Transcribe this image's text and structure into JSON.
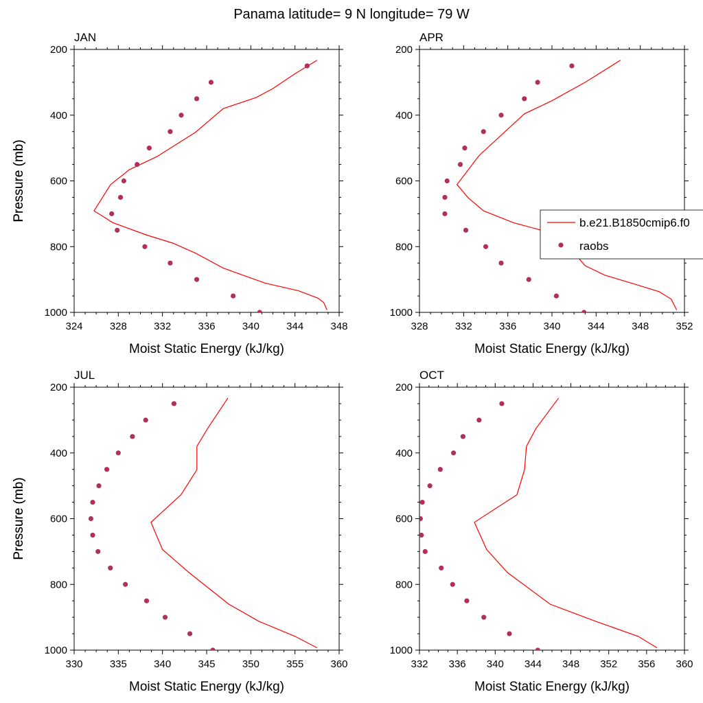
{
  "figure": {
    "title": "Panama  latitude= 9 N longitude= 79 W"
  },
  "legend": {
    "model_label": "b.e21.B1850cmip6.f0",
    "obs_label": "raobs",
    "model_color": "#ff0000",
    "obs_color": "#b0305a"
  },
  "chart_data": [
    {
      "type": "line",
      "title": "JAN",
      "xlabel": "Moist Static Energy (kJ/kg)",
      "ylabel": "Pressure (mb)",
      "xlim": [
        324,
        348
      ],
      "ylim": [
        200,
        1000
      ],
      "y_reversed": true,
      "xticks": [
        324,
        328,
        332,
        336,
        340,
        344,
        348
      ],
      "yticks": [
        200,
        400,
        600,
        800,
        1000
      ],
      "series": [
        {
          "name": "b.e21.B1850cmip6.f0",
          "kind": "line",
          "x": [
            346.0,
            344.0,
            342.0,
            340.5,
            337.5,
            335.0,
            331.5,
            329.0,
            327.3,
            325.8,
            327.5,
            330.5,
            333.0,
            335.0,
            337.5,
            339.3,
            341.3,
            344.3,
            346.1,
            346.6,
            346.9
          ],
          "y": [
            233,
            274,
            319,
            346,
            380,
            452,
            526,
            566,
            611,
            691,
            727,
            764,
            790,
            820,
            865,
            887,
            911,
            934,
            957,
            970,
            993
          ]
        },
        {
          "name": "raobs",
          "kind": "scatter",
          "x": [
            345.1,
            336.4,
            335.1,
            333.7,
            332.7,
            330.8,
            329.7,
            328.5,
            328.2,
            327.4,
            327.9,
            330.4,
            332.7,
            335.1,
            338.4,
            340.8
          ],
          "y": [
            250,
            300,
            350,
            400,
            450,
            500,
            550,
            600,
            650,
            700,
            750,
            800,
            850,
            900,
            950,
            1000
          ]
        }
      ]
    },
    {
      "type": "line",
      "title": "APR",
      "xlabel": "Moist Static Energy (kJ/kg)",
      "ylabel": "Pressure (mb)",
      "xlim": [
        328,
        352
      ],
      "ylim": [
        200,
        1000
      ],
      "y_reversed": true,
      "xticks": [
        328,
        332,
        336,
        340,
        344,
        348,
        352
      ],
      "yticks": [
        200,
        400,
        600,
        800,
        1000
      ],
      "series": [
        {
          "name": "b.e21.B1850cmip6.f0",
          "kind": "line",
          "x": [
            346.2,
            343.0,
            340.0,
            337.5,
            335.3,
            333.4,
            331.4,
            332.4,
            333.8,
            336.5,
            340.0,
            341.2,
            342.2,
            343.0,
            344.8,
            347.3,
            349.7,
            350.8,
            351.3
          ],
          "y": [
            233,
            300,
            356,
            396,
            464,
            523,
            611,
            651,
            691,
            727,
            759,
            790,
            827,
            858,
            887,
            912,
            937,
            960,
            993
          ]
        },
        {
          "name": "raobs",
          "kind": "scatter",
          "x": [
            341.8,
            338.7,
            337.5,
            335.4,
            333.8,
            332.1,
            331.7,
            330.5,
            330.3,
            330.3,
            332.2,
            334.0,
            335.4,
            337.9,
            340.4,
            342.9
          ],
          "y": [
            250,
            300,
            350,
            400,
            450,
            500,
            550,
            600,
            650,
            700,
            750,
            800,
            850,
            900,
            950,
            1000
          ]
        }
      ]
    },
    {
      "type": "line",
      "title": "JUL",
      "xlabel": "Moist Static Energy (kJ/kg)",
      "ylabel": "Pressure (mb)",
      "xlim": [
        330,
        360
      ],
      "ylim": [
        200,
        1000
      ],
      "y_reversed": true,
      "xticks": [
        330,
        335,
        340,
        345,
        350,
        355,
        360
      ],
      "yticks": [
        200,
        400,
        600,
        800,
        1000
      ],
      "series": [
        {
          "name": "b.e21.B1850cmip6.f0",
          "kind": "line",
          "x": [
            347.4,
            345.1,
            343.9,
            343.9,
            342.1,
            338.7,
            340.0,
            343.0,
            347.5,
            350.9,
            355.0,
            357.5
          ],
          "y": [
            233,
            326,
            380,
            451,
            527,
            611,
            694,
            764,
            860,
            912,
            958,
            993
          ]
        },
        {
          "name": "raobs",
          "kind": "scatter",
          "x": [
            341.3,
            338.1,
            336.6,
            335.0,
            333.7,
            332.8,
            332.1,
            331.9,
            332.1,
            332.7,
            334.1,
            335.8,
            338.2,
            340.3,
            343.1,
            345.7
          ],
          "y": [
            250,
            300,
            350,
            400,
            450,
            500,
            550,
            600,
            650,
            700,
            750,
            800,
            850,
            900,
            950,
            1000
          ]
        }
      ]
    },
    {
      "type": "line",
      "title": "OCT",
      "xlabel": "Moist Static Energy (kJ/kg)",
      "ylabel": "Pressure (mb)",
      "xlim": [
        332,
        360
      ],
      "ylim": [
        200,
        1000
      ],
      "y_reversed": true,
      "xticks": [
        332,
        336,
        340,
        344,
        348,
        352,
        356,
        360
      ],
      "yticks": [
        200,
        400,
        600,
        800,
        1000
      ],
      "series": [
        {
          "name": "b.e21.B1850cmip6.f0",
          "kind": "line",
          "x": [
            346.7,
            344.3,
            343.3,
            343.1,
            342.3,
            337.8,
            339.1,
            341.3,
            345.8,
            350.6,
            355.1,
            357.1
          ],
          "y": [
            233,
            326,
            380,
            451,
            527,
            611,
            694,
            764,
            860,
            912,
            958,
            993
          ]
        },
        {
          "name": "raobs",
          "kind": "scatter",
          "x": [
            340.7,
            338.3,
            336.6,
            335.6,
            334.2,
            333.1,
            332.3,
            332.1,
            332.2,
            332.6,
            334.3,
            335.5,
            337.0,
            338.8,
            341.5,
            344.5
          ],
          "y": [
            250,
            300,
            350,
            400,
            450,
            500,
            550,
            600,
            650,
            700,
            750,
            800,
            850,
            900,
            950,
            1000
          ]
        }
      ]
    }
  ]
}
